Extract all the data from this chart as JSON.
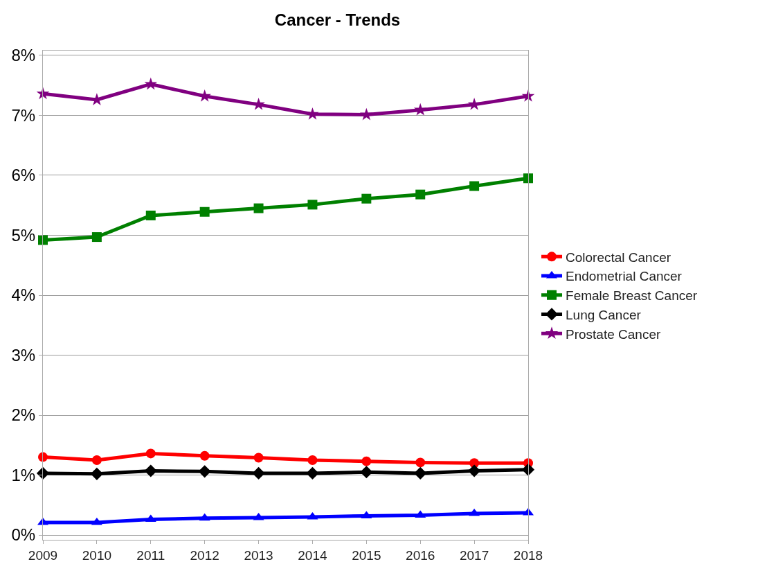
{
  "chart_data": {
    "type": "line",
    "title": "Cancer - Trends",
    "categories": [
      "2009",
      "2010",
      "2011",
      "2012",
      "2013",
      "2014",
      "2015",
      "2016",
      "2017",
      "2018"
    ],
    "series": [
      {
        "name": "Colorectal Cancer",
        "color": "#ff0000",
        "marker": "circle",
        "values": [
          1.3,
          1.25,
          1.36,
          1.32,
          1.29,
          1.25,
          1.23,
          1.21,
          1.2,
          1.2
        ]
      },
      {
        "name": "Endometrial Cancer",
        "color": "#0000ff",
        "marker": "triangle",
        "values": [
          0.21,
          0.21,
          0.26,
          0.28,
          0.29,
          0.3,
          0.32,
          0.33,
          0.36,
          0.37
        ]
      },
      {
        "name": "Female Breast Cancer",
        "color": "#008000",
        "marker": "square",
        "values": [
          4.92,
          4.97,
          5.33,
          5.39,
          5.45,
          5.51,
          5.61,
          5.68,
          5.82,
          5.95
        ]
      },
      {
        "name": "Lung Cancer",
        "color": "#000000",
        "marker": "diamond",
        "values": [
          1.03,
          1.02,
          1.07,
          1.06,
          1.03,
          1.03,
          1.05,
          1.03,
          1.07,
          1.09
        ]
      },
      {
        "name": "Prostate Cancer",
        "color": "#800080",
        "marker": "star",
        "values": [
          7.36,
          7.26,
          7.52,
          7.32,
          7.18,
          7.02,
          7.01,
          7.09,
          7.18,
          7.32
        ]
      }
    ],
    "ylim": [
      -0.08,
      8.08
    ],
    "yticks": [
      {
        "value": 0,
        "label": "0%"
      },
      {
        "value": 1,
        "label": "1%"
      },
      {
        "value": 2,
        "label": "2%"
      },
      {
        "value": 3,
        "label": "3%"
      },
      {
        "value": 4,
        "label": "4%"
      },
      {
        "value": 5,
        "label": "5%"
      },
      {
        "value": 6,
        "label": "6%"
      },
      {
        "value": 7,
        "label": "7%"
      },
      {
        "value": 8,
        "label": "8%"
      }
    ],
    "grid": "y",
    "legend": "right",
    "line_style": "solid"
  }
}
